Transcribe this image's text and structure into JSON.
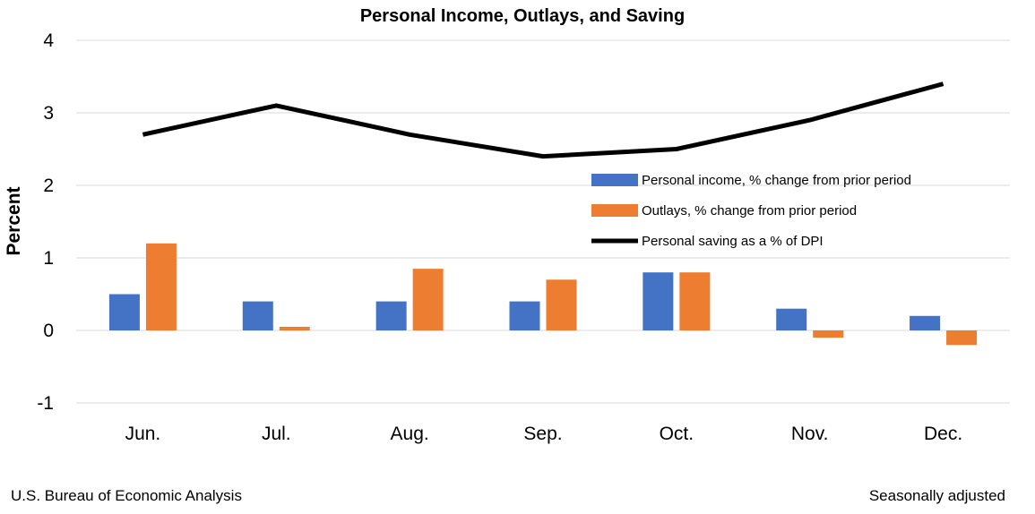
{
  "chart_data": {
    "type": "bar",
    "title": "Personal Income, Outlays, and Saving",
    "xlabel": "",
    "ylabel": "Percent",
    "categories": [
      "Jun.",
      "Jul.",
      "Aug.",
      "Sep.",
      "Oct.",
      "Nov.",
      "Dec."
    ],
    "ylim": [
      -1,
      4
    ],
    "yticks": [
      "-1",
      "0",
      "1",
      "2",
      "3",
      "4"
    ],
    "grid": true,
    "legend_position": "right",
    "series": [
      {
        "name": "Personal income, % change from prior period",
        "type": "bar",
        "color": "#4472C4",
        "values": [
          0.5,
          0.4,
          0.4,
          0.4,
          0.8,
          0.3,
          0.2
        ]
      },
      {
        "name": "Outlays, % change from prior period",
        "type": "bar",
        "color": "#ED7D31",
        "values": [
          1.2,
          0.05,
          0.85,
          0.7,
          0.8,
          -0.1,
          -0.2
        ]
      },
      {
        "name": "Personal saving as a % of DPI",
        "type": "line",
        "color": "#000000",
        "values": [
          2.7,
          3.1,
          2.7,
          2.4,
          2.5,
          2.9,
          3.4
        ]
      }
    ]
  },
  "footer": {
    "source": "U.S. Bureau of Economic Analysis",
    "note": "Seasonally adjusted"
  }
}
